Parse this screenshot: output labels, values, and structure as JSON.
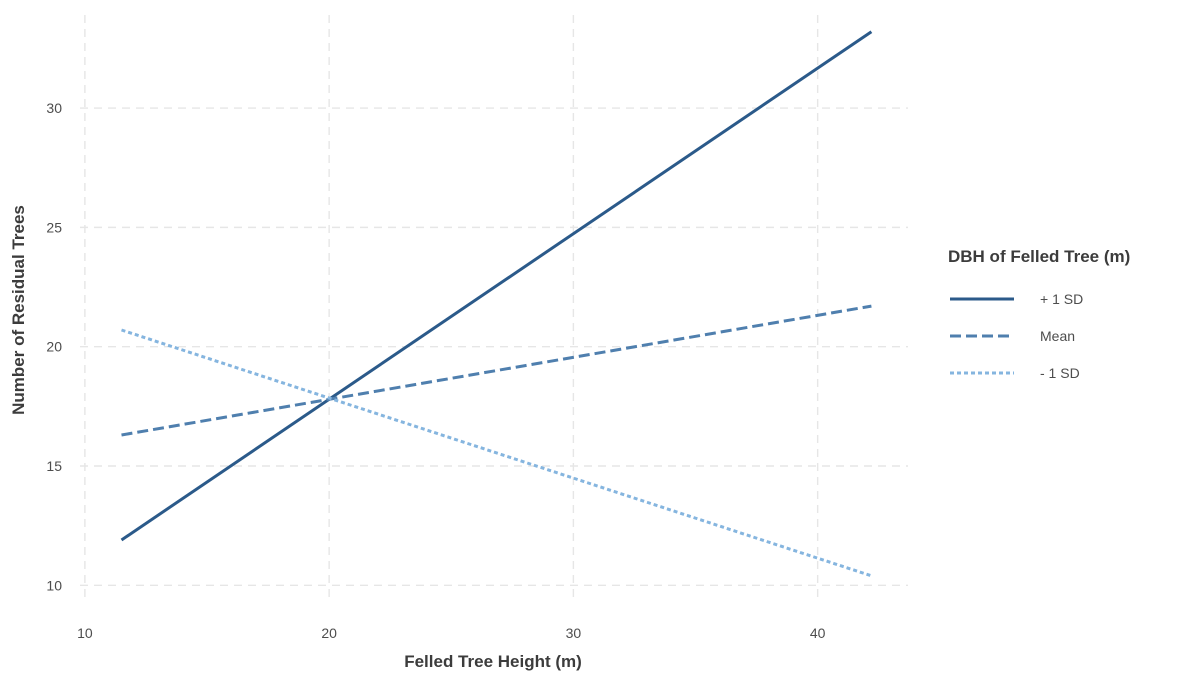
{
  "chart_data": {
    "type": "line",
    "title": "",
    "xlabel": "Felled Tree Height (m)",
    "ylabel": "Number of Residual Trees",
    "xlim": [
      9.8,
      43.7
    ],
    "ylim": [
      9.3,
      33.9
    ],
    "x_ticks": [
      10,
      20,
      30,
      40
    ],
    "y_ticks": [
      10,
      15,
      20,
      25,
      30
    ],
    "grid": true,
    "legend": {
      "title": "DBH of Felled Tree (m)",
      "position": "right"
    },
    "series": [
      {
        "name": "+ 1 SD",
        "style": "solid",
        "color": "#2b5a8a",
        "x": [
          11.5,
          42.2
        ],
        "y": [
          11.9,
          33.2
        ]
      },
      {
        "name": "Mean",
        "style": "dashed",
        "color": "#4f7fae",
        "x": [
          11.5,
          42.2
        ],
        "y": [
          16.3,
          21.7
        ]
      },
      {
        "name": "- 1 SD",
        "style": "dotted",
        "color": "#85b5df",
        "x": [
          11.5,
          42.2
        ],
        "y": [
          20.7,
          10.4
        ]
      }
    ]
  }
}
